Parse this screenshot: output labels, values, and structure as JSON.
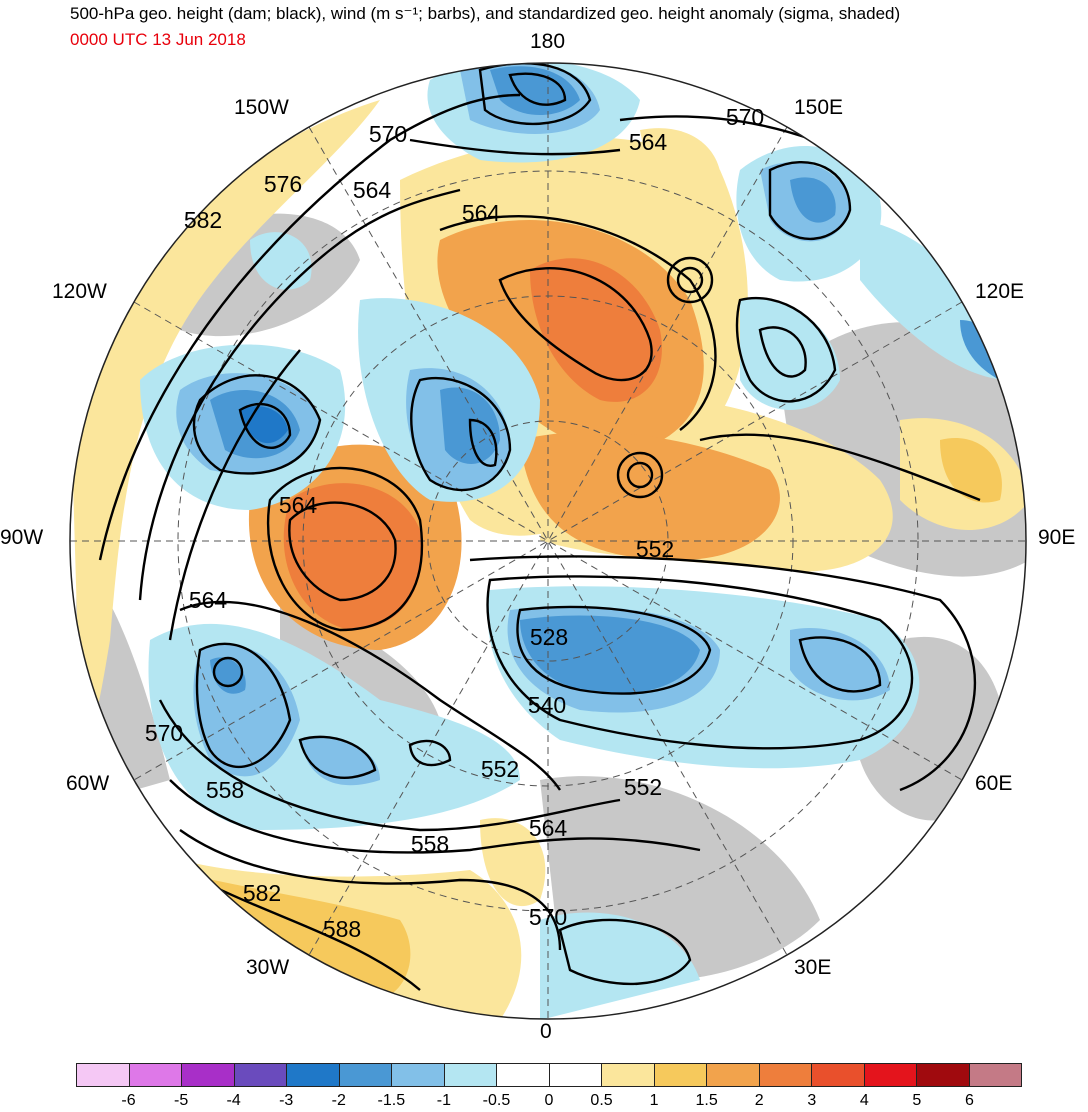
{
  "header": {
    "title": "500-hPa geo. height (dam; black), wind (m s⁻¹; barbs), and standardized geo. height anomaly (sigma, shaded)",
    "valid_time": "0000 UTC 13 Jun 2018"
  },
  "map": {
    "projection": "north polar stereographic",
    "longitude_labels": {
      "top": "180",
      "bottom": "0",
      "left": "90W",
      "right": "90E",
      "upper_left_inner": "150W",
      "upper_left_outer": "120W",
      "lower_left_outer": "60W",
      "lower_left_inner": "30W",
      "upper_right_inner": "150E",
      "upper_right_outer": "120E",
      "lower_right_outer": "60E",
      "lower_right_inner": "30E"
    },
    "contour_labels": [
      "570",
      "576",
      "582",
      "564",
      "564",
      "570",
      "564",
      "564",
      "564",
      "570",
      "558",
      "552",
      "528",
      "540",
      "552",
      "552",
      "564",
      "558",
      "582",
      "588",
      "570"
    ],
    "anomaly_centers": [
      {
        "sign": "negative",
        "region": "North Pacific near 180",
        "level": -2
      },
      {
        "sign": "negative",
        "region": "East Siberia near 150E",
        "level": -2
      },
      {
        "sign": "negative",
        "region": "NW Canada",
        "level": -3
      },
      {
        "sign": "positive",
        "region": "Hudson Bay",
        "level": 2
      },
      {
        "sign": "positive",
        "region": "East Siberian Sea",
        "level": 2
      },
      {
        "sign": "negative",
        "region": "Barents/Kara Sea",
        "level": -2
      },
      {
        "sign": "negative",
        "region": "North Atlantic",
        "level": -1.5
      },
      {
        "sign": "positive",
        "region": "Subtropical Atlantic",
        "level": 1
      }
    ]
  },
  "colorbar": {
    "colors": [
      "#f5c8f5",
      "#de78e8",
      "#a82fc8",
      "#6a4bbd",
      "#1f78c8",
      "#4a98d4",
      "#82c0e8",
      "#b4e6f2",
      "#ffffff",
      "#ffffff",
      "#fbe69c",
      "#f6c95c",
      "#f2a34c",
      "#ee7e3c",
      "#e9502c",
      "#e4141c",
      "#a00a0e",
      "#c47a86"
    ],
    "ticks": [
      "-6",
      "-5",
      "-4",
      "-3",
      "-2",
      "-1.5",
      "-1",
      "-0.5",
      "0",
      "0.5",
      "1",
      "1.5",
      "2",
      "3",
      "4",
      "5",
      "6"
    ]
  }
}
